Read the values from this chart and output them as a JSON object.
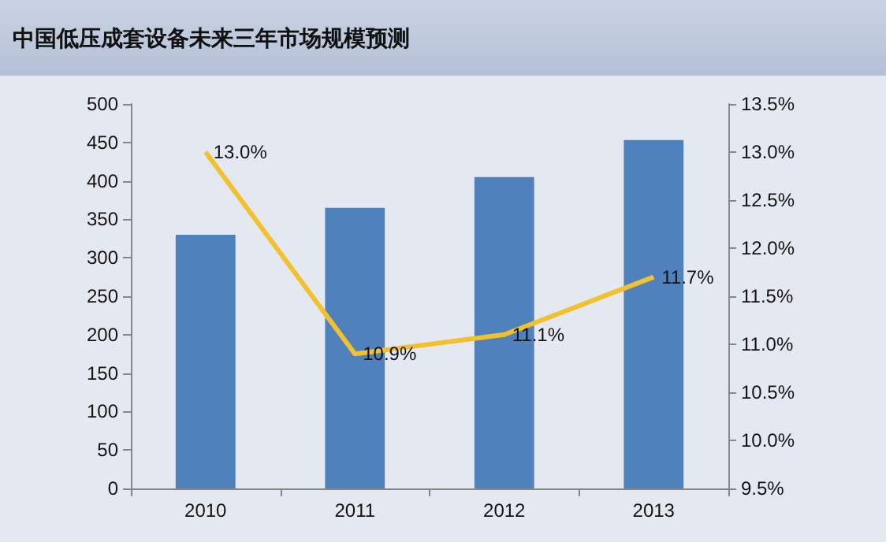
{
  "chart_data": {
    "type": "bar",
    "title": "中国低压成套设备未来三年市场规模预测",
    "categories": [
      "2010",
      "2011",
      "2012",
      "2013"
    ],
    "series": [
      {
        "color": "#4f81bd",
        "values": [
          330,
          365,
          405,
          453
        ]
      },
      {
        "type": "line",
        "axis": "y2",
        "color": "#f2c12e",
        "values": [
          13.0,
          10.9,
          11.1,
          11.7
        ],
        "value_labels": [
          "13.0%",
          "10.9%",
          "11.1%",
          "11.7%"
        ]
      }
    ],
    "ylim": [
      0,
      500
    ],
    "yticks": [
      0,
      50,
      100,
      150,
      200,
      250,
      300,
      350,
      400,
      450,
      500
    ],
    "y2lim": [
      9.5,
      13.5
    ],
    "y2ticks": [
      {
        "value": 9.5,
        "label": "9.5%"
      },
      {
        "value": 10.0,
        "label": "10.0%"
      },
      {
        "value": 10.5,
        "label": "10.5%"
      },
      {
        "value": 11.0,
        "label": "11.0%"
      },
      {
        "value": 11.5,
        "label": "11.5%"
      },
      {
        "value": 12.0,
        "label": "12.0%"
      },
      {
        "value": 12.5,
        "label": "12.5%"
      },
      {
        "value": 13.0,
        "label": "13.0%"
      },
      {
        "value": 13.5,
        "label": "13.5%"
      }
    ],
    "grid": false,
    "marker": "none"
  }
}
